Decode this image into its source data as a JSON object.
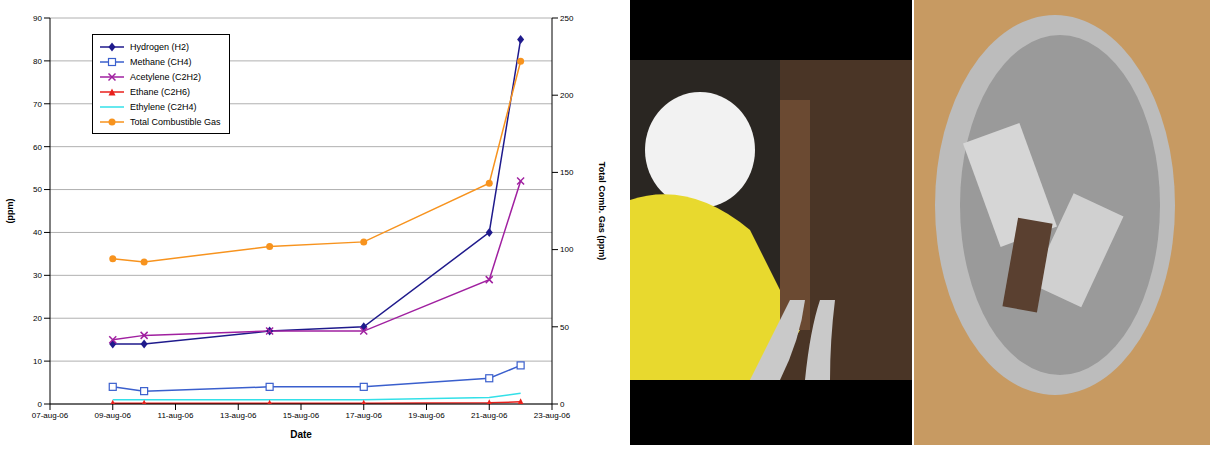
{
  "chart_data": {
    "type": "line",
    "x": [
      "2006-08-09",
      "2006-08-10",
      "2006-08-14",
      "2006-08-17",
      "2006-08-21",
      "2006-08-22"
    ],
    "x_label": "Date",
    "y_label": "(ppm)",
    "y2_label": "Total Comb. Gas (ppm)",
    "xlim": [
      "2006-08-07",
      "2006-08-23"
    ],
    "xticks": [
      {
        "value": "2006-08-07",
        "label": "07-aug-06"
      },
      {
        "value": "2006-08-09",
        "label": "09-aug-06"
      },
      {
        "value": "2006-08-11",
        "label": "11-aug-06"
      },
      {
        "value": "2006-08-13",
        "label": "13-aug-06"
      },
      {
        "value": "2006-08-15",
        "label": "15-aug-06"
      },
      {
        "value": "2006-08-17",
        "label": "17-aug-06"
      },
      {
        "value": "2006-08-19",
        "label": "19-aug-06"
      },
      {
        "value": "2006-08-21",
        "label": "21-aug-06"
      },
      {
        "value": "2006-08-23",
        "label": "23-aug-06"
      }
    ],
    "ylim": [
      0,
      90
    ],
    "yticks": [
      0,
      10,
      20,
      30,
      40,
      50,
      60,
      70,
      80,
      90
    ],
    "y2lim": [
      0,
      250
    ],
    "y2ticks": [
      0,
      50,
      100,
      150,
      200,
      250
    ],
    "grid": true,
    "legend": "upper left",
    "series": [
      {
        "name": "Hydrogen (H2)",
        "color": "#1f1a8c",
        "marker": "diamond",
        "values": [
          14,
          14,
          17,
          18,
          40,
          85
        ]
      },
      {
        "name": "Methane (CH4)",
        "color": "#3a5fcd",
        "marker": "square_open",
        "values": [
          4,
          3,
          4,
          4,
          6,
          9
        ]
      },
      {
        "name": "Acetylene (C2H2)",
        "color": "#a020a0",
        "marker": "x",
        "values": [
          15,
          16,
          17,
          17,
          29,
          52
        ]
      },
      {
        "name": "Ethane (C2H6)",
        "color": "#e8201c",
        "marker": "triangle",
        "values": [
          0.2,
          0.2,
          0.2,
          0.2,
          0.3,
          0.5
        ]
      },
      {
        "name": "Ethylene (C2H4)",
        "color": "#33e0e8",
        "marker": "none",
        "values": [
          1,
          1,
          1,
          1,
          1.5,
          2.5
        ]
      },
      {
        "name": "Total Combustible Gas",
        "color": "#f7931e",
        "marker": "circle",
        "axis": "y2",
        "values": [
          94,
          92,
          102,
          105,
          143,
          222
        ]
      }
    ]
  }
}
